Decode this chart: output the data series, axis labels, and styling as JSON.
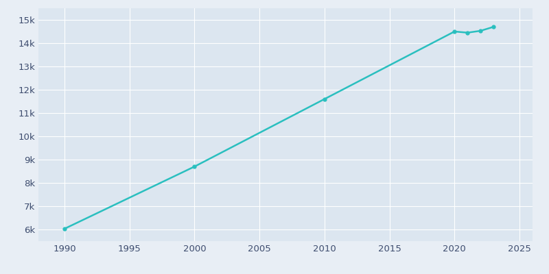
{
  "years": [
    1990,
    2000,
    2010,
    2020,
    2021,
    2022,
    2023
  ],
  "population": [
    6030,
    8700,
    11600,
    14500,
    14450,
    14530,
    14700
  ],
  "line_color": "#2ABFBF",
  "marker_color": "#2ABFBF",
  "background_color": "#E8EEF5",
  "plot_background": "#DCE6F0",
  "grid_color": "#FFFFFF",
  "text_color": "#3D4C6E",
  "xlim": [
    1988,
    2026
  ],
  "ylim": [
    5500,
    15500
  ],
  "xticks": [
    1990,
    1995,
    2000,
    2005,
    2010,
    2015,
    2020,
    2025
  ],
  "yticks": [
    6000,
    7000,
    8000,
    9000,
    10000,
    11000,
    12000,
    13000,
    14000,
    15000
  ]
}
